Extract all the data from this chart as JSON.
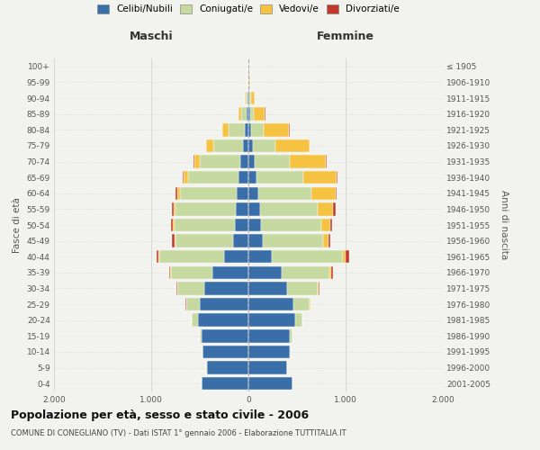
{
  "age_groups": [
    "0-4",
    "5-9",
    "10-14",
    "15-19",
    "20-24",
    "25-29",
    "30-34",
    "35-39",
    "40-44",
    "45-49",
    "50-54",
    "55-59",
    "60-64",
    "65-69",
    "70-74",
    "75-79",
    "80-84",
    "85-89",
    "90-94",
    "95-99",
    "100+"
  ],
  "birth_years": [
    "2001-2005",
    "1996-2000",
    "1991-1995",
    "1986-1990",
    "1981-1985",
    "1976-1980",
    "1971-1975",
    "1966-1970",
    "1961-1965",
    "1956-1960",
    "1951-1955",
    "1946-1950",
    "1941-1945",
    "1936-1940",
    "1931-1935",
    "1926-1930",
    "1921-1925",
    "1916-1920",
    "1911-1915",
    "1906-1910",
    "≤ 1905"
  ],
  "males": {
    "celibi": [
      480,
      430,
      470,
      480,
      520,
      500,
      450,
      370,
      250,
      160,
      140,
      130,
      120,
      100,
      80,
      55,
      35,
      20,
      10,
      4,
      2
    ],
    "coniugati": [
      1,
      2,
      5,
      20,
      60,
      140,
      280,
      430,
      670,
      590,
      620,
      620,
      580,
      520,
      420,
      310,
      170,
      55,
      15,
      5,
      2
    ],
    "vedovi": [
      0,
      0,
      0,
      0,
      1,
      2,
      3,
      5,
      5,
      10,
      15,
      20,
      35,
      50,
      60,
      70,
      60,
      25,
      10,
      2,
      0
    ],
    "divorziati": [
      0,
      0,
      0,
      1,
      2,
      5,
      8,
      10,
      15,
      25,
      20,
      18,
      12,
      8,
      5,
      4,
      3,
      2,
      0,
      0,
      0
    ]
  },
  "females": {
    "nubili": [
      450,
      400,
      430,
      430,
      480,
      460,
      400,
      340,
      240,
      145,
      130,
      120,
      100,
      85,
      65,
      45,
      30,
      20,
      12,
      4,
      2
    ],
    "coniugate": [
      1,
      2,
      6,
      25,
      75,
      170,
      310,
      490,
      730,
      620,
      620,
      590,
      550,
      480,
      360,
      230,
      130,
      40,
      15,
      5,
      2
    ],
    "vedove": [
      0,
      0,
      0,
      1,
      3,
      5,
      10,
      20,
      30,
      55,
      90,
      160,
      250,
      340,
      370,
      350,
      260,
      110,
      40,
      8,
      2
    ],
    "divorziate": [
      0,
      0,
      0,
      1,
      2,
      5,
      10,
      20,
      40,
      25,
      22,
      30,
      12,
      8,
      6,
      5,
      3,
      2,
      1,
      0,
      0
    ]
  },
  "colors": {
    "celibi_nubili": "#3a6ea8",
    "coniugati_e": "#c5d9a0",
    "vedovi_e": "#f5c242",
    "divorziati_e": "#c0392b"
  },
  "xlim": 2000,
  "title": "Popolazione per età, sesso e stato civile - 2006",
  "subtitle": "COMUNE DI CONEGLIANO (TV) - Dati ISTAT 1° gennaio 2006 - Elaborazione TUTTITALIA.IT",
  "ylabel_left": "Fasce di età",
  "ylabel_right": "Anni di nascita",
  "xlabel_left": "Maschi",
  "xlabel_right": "Femmine",
  "legend_labels": [
    "Celibi/Nubili",
    "Coniugati/e",
    "Vedovi/e",
    "Divorziati/e"
  ],
  "background_color": "#f2f2ee"
}
